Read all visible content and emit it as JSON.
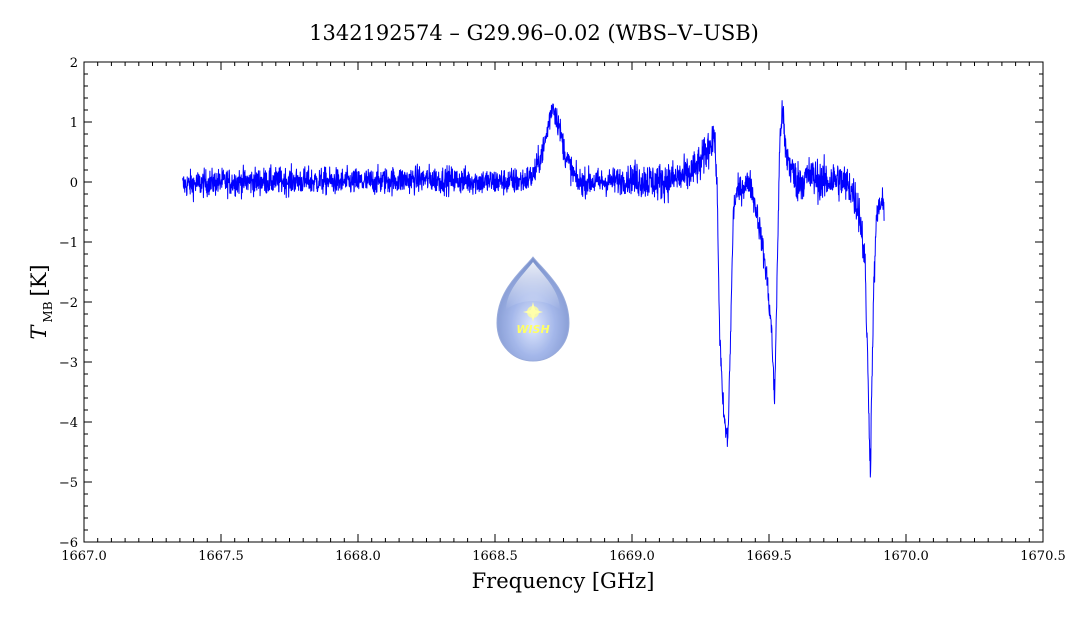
{
  "chart_data": {
    "type": "line",
    "title": "1342192574 – G29.96–0.02 (WBS–V–USB)",
    "xlabel": "Frequency [GHz]",
    "ylabel": {
      "symbol": "T",
      "subscript": "MB",
      "unit": "[K]"
    },
    "xlim": [
      1667.0,
      1670.5
    ],
    "ylim": [
      -6,
      2
    ],
    "x_ticks": [
      1667.0,
      1667.5,
      1668.0,
      1668.5,
      1669.0,
      1669.5,
      1670.0,
      1670.5
    ],
    "x_tick_labels": [
      "1667.0",
      "1667.5",
      "1668.0",
      "1668.5",
      "1669.0",
      "1669.5",
      "1670.0",
      "1670.5"
    ],
    "y_ticks": [
      2,
      1,
      0,
      -1,
      -2,
      -3,
      -4,
      -5,
      -6
    ],
    "y_tick_labels": [
      "2",
      "1",
      "0",
      "−1",
      "−2",
      "−3",
      "−4",
      "−5",
      "−6"
    ],
    "grid": false,
    "line_color": "#0000ff",
    "series": [
      {
        "x": [
          1667.36,
          1667.5,
          1667.75,
          1668.0,
          1668.25,
          1668.5,
          1668.6,
          1668.64,
          1668.68,
          1668.71,
          1668.73,
          1668.76,
          1668.8,
          1668.9,
          1669.0,
          1669.1,
          1669.2,
          1669.25,
          1669.28,
          1669.3,
          1669.31,
          1669.32,
          1669.33,
          1669.34,
          1669.35,
          1669.36,
          1669.37,
          1669.38,
          1669.4,
          1669.43,
          1669.46,
          1669.49,
          1669.51,
          1669.52,
          1669.53,
          1669.54,
          1669.55,
          1669.56,
          1669.6,
          1669.65,
          1669.7,
          1669.75,
          1669.8,
          1669.83,
          1669.85,
          1669.86,
          1669.87,
          1669.88,
          1669.89,
          1669.9,
          1669.92
        ],
        "y": [
          -0.05,
          0.0,
          0.02,
          0.0,
          0.05,
          0.0,
          0.02,
          0.1,
          0.6,
          1.3,
          1.0,
          0.4,
          0.0,
          0.0,
          0.05,
          0.0,
          0.1,
          0.3,
          0.6,
          0.8,
          0.0,
          -2.5,
          -3.6,
          -4.1,
          -4.3,
          -2.5,
          -0.5,
          -0.2,
          -0.1,
          0.0,
          -0.6,
          -1.5,
          -2.5,
          -3.7,
          -1.5,
          0.8,
          1.2,
          0.5,
          0.0,
          0.1,
          0.0,
          0.05,
          -0.1,
          -0.5,
          -1.3,
          -3.0,
          -4.8,
          -2.2,
          -0.8,
          -0.4,
          -0.4
        ]
      }
    ]
  },
  "logo": {
    "text": "WISH"
  }
}
